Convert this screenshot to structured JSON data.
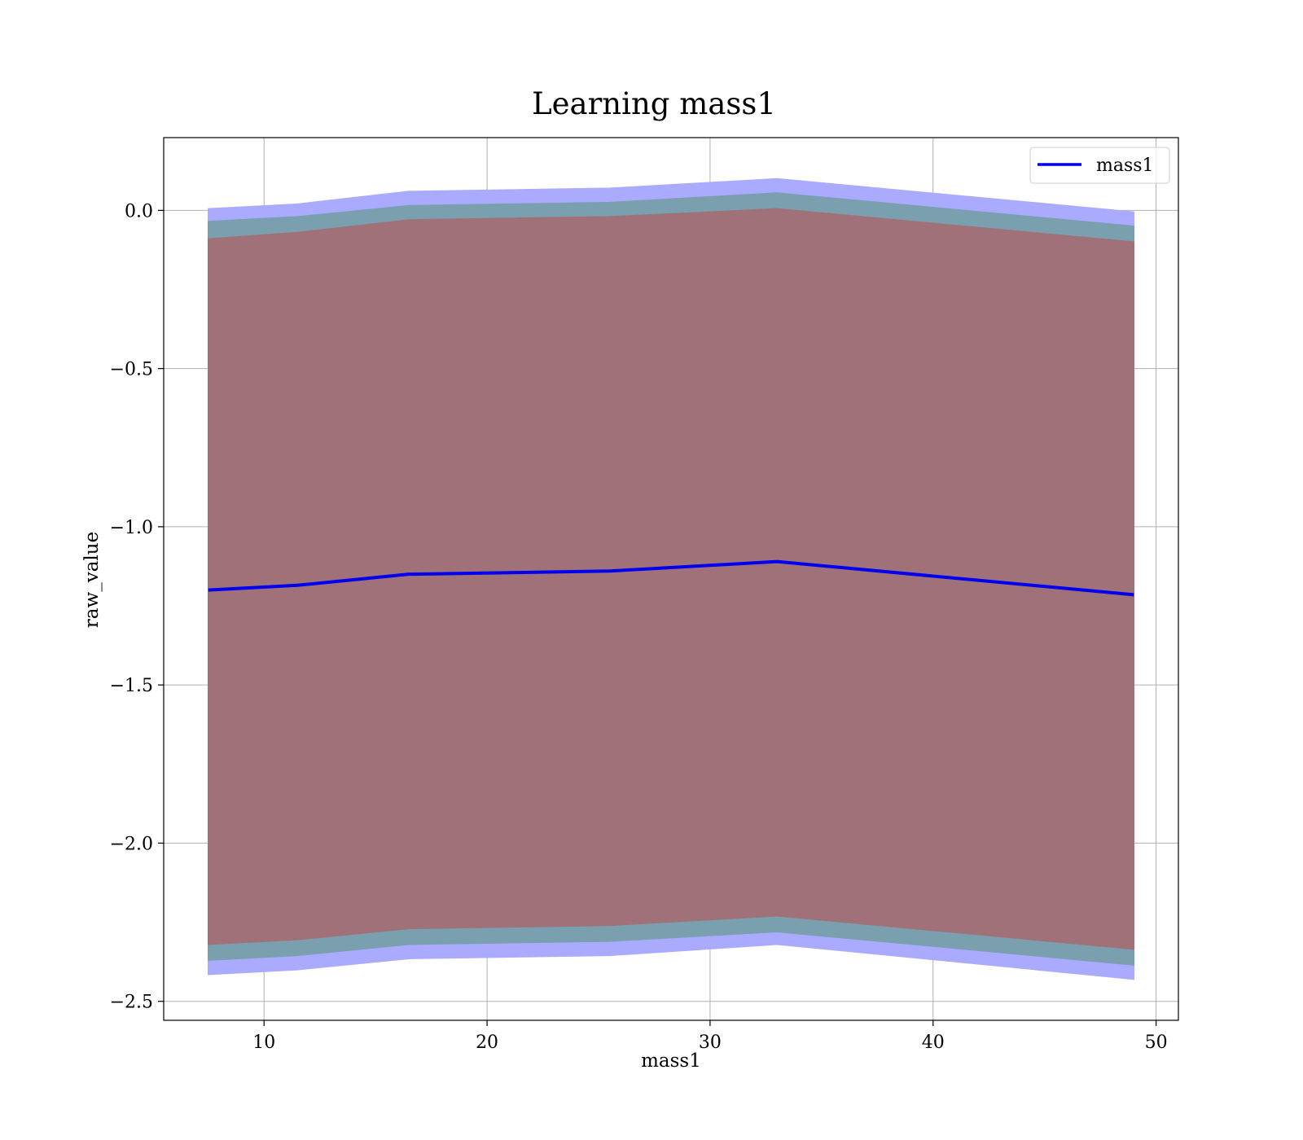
{
  "chart_data": {
    "type": "area",
    "title": "Learning mass1",
    "xlabel": "mass1",
    "ylabel": "raw_value",
    "xlim": [
      5.5,
      51.0
    ],
    "ylim": [
      -2.56,
      0.23
    ],
    "xticks": [
      10,
      20,
      30,
      40,
      50
    ],
    "yticks": [
      0.0,
      -0.5,
      -1.0,
      -1.5,
      -2.0,
      -2.5
    ],
    "xtick_labels": [
      "10",
      "20",
      "30",
      "40",
      "50"
    ],
    "ytick_labels": [
      "0.0",
      "−0.5",
      "−1.0",
      "−1.5",
      "−2.0",
      "−2.5"
    ],
    "grid": true,
    "legend": {
      "position": "top-right",
      "entries": [
        "mass1"
      ]
    },
    "x": [
      7.5,
      11.5,
      16.5,
      25.5,
      33.0,
      49.0
    ],
    "series": [
      {
        "name": "mass1",
        "kind": "line",
        "color": "#0000ee",
        "values": [
          -1.2,
          -1.185,
          -1.15,
          -1.14,
          -1.11,
          -1.215
        ]
      }
    ],
    "bands": [
      {
        "color": "#aaaaff",
        "upper": [
          0.005,
          0.02,
          0.06,
          0.07,
          0.1,
          -0.005
        ],
        "lower": [
          -2.415,
          -2.4,
          -2.365,
          -2.355,
          -2.32,
          -2.43
        ]
      },
      {
        "color": "#7a9fae",
        "upper": [
          -0.035,
          -0.02,
          0.015,
          0.025,
          0.055,
          -0.05
        ],
        "lower": [
          -2.37,
          -2.355,
          -2.32,
          -2.31,
          -2.28,
          -2.385
        ]
      },
      {
        "color": "#a07178",
        "upper": [
          -0.09,
          -0.07,
          -0.03,
          -0.02,
          0.005,
          -0.1
        ],
        "lower": [
          -2.32,
          -2.305,
          -2.27,
          -2.26,
          -2.23,
          -2.335
        ]
      }
    ]
  }
}
